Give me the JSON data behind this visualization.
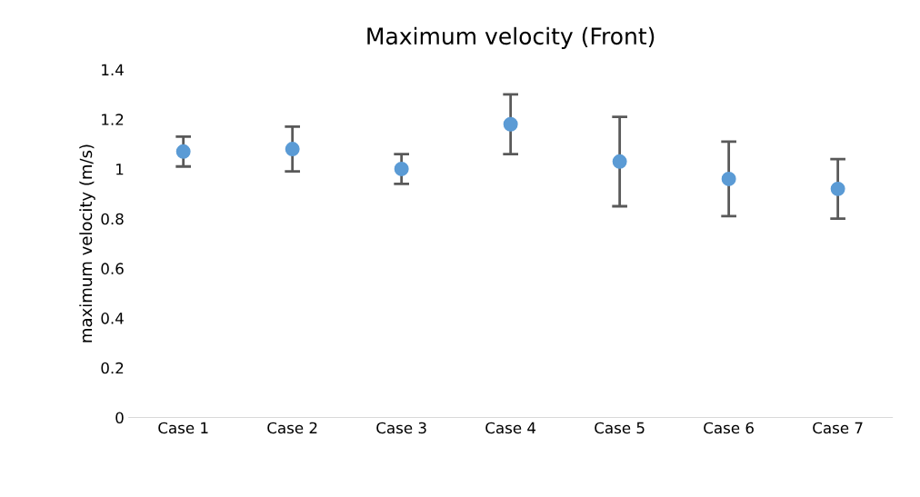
{
  "chart_data": {
    "type": "scatter",
    "title": "Maximum velocity (Front)",
    "ylabel": "maximum velocity (m/s)",
    "categories": [
      "Case 1",
      "Case 2",
      "Case 3",
      "Case 4",
      "Case 5",
      "Case 6",
      "Case 7"
    ],
    "values": [
      1.07,
      1.08,
      1.0,
      1.18,
      1.03,
      0.96,
      0.92
    ],
    "errors": [
      0.06,
      0.09,
      0.06,
      0.12,
      0.18,
      0.15,
      0.12
    ],
    "color": "#5b9bd5",
    "marker": "circle",
    "ylim": [
      0,
      1.4
    ],
    "yticks": [
      0,
      0.2,
      0.4,
      0.6,
      0.8,
      1,
      1.2,
      1.4
    ],
    "grid": false
  }
}
